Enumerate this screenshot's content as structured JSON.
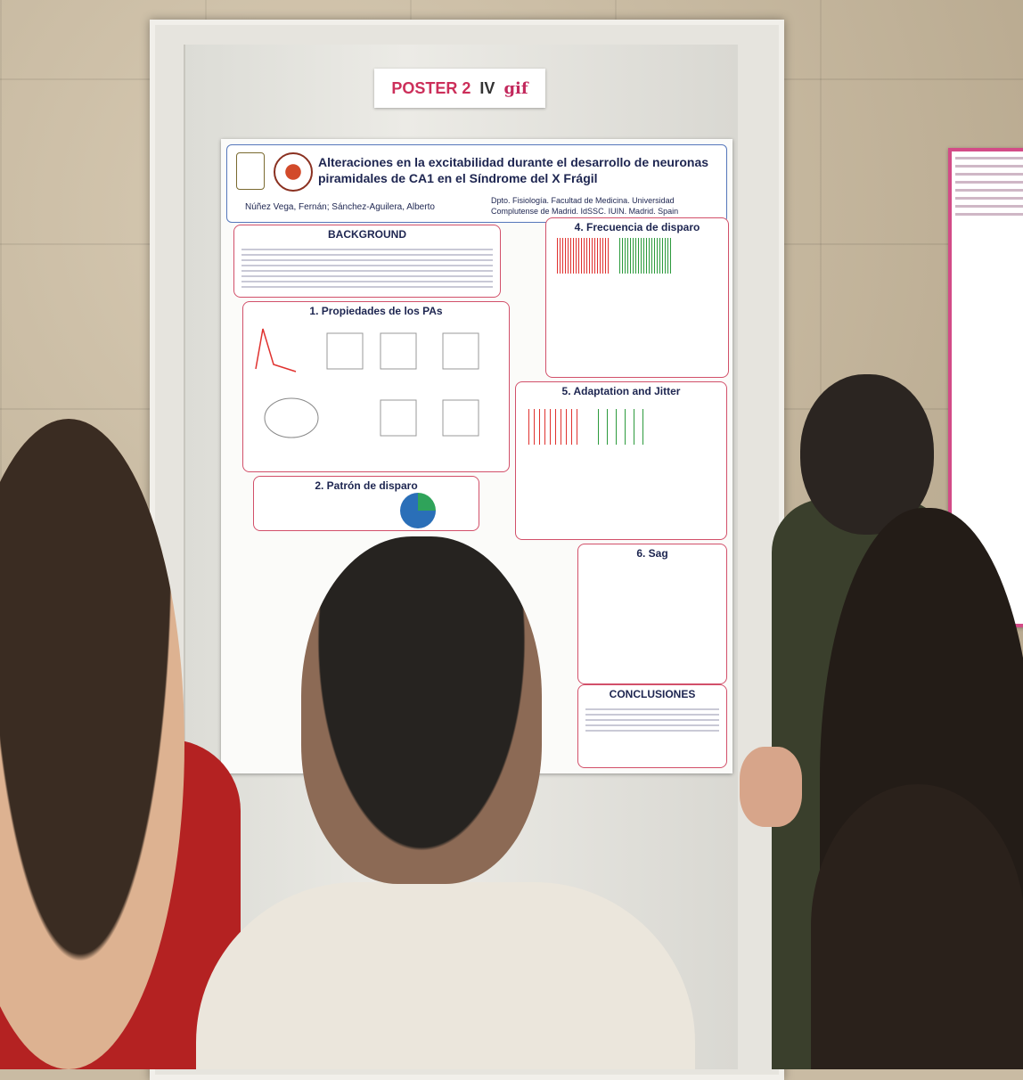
{
  "label": {
    "poster_number": "POSTER 2",
    "conference": "IV",
    "logo_text": "gif"
  },
  "poster": {
    "title": "Alteraciones en la excitabilidad durante el desarrollo de neuronas piramidales de CA1 en el Síndrome del X Frágil",
    "authors": "Núñez Vega, Fernán; Sánchez-Aguilera, Alberto",
    "affiliation": "Dpto. Fisiología. Facultad de Medicina. Universidad Complutense de Madrid. IdSSC. IUIN. Madrid. Spain",
    "sections": {
      "background": "BACKGROUND",
      "s1": "1. Propiedades de los PAs",
      "s2": "2. Patrón de disparo",
      "s4": "4. Frecuencia de disparo",
      "s5": "5. Adaptation and Jitter",
      "s6": "6. Sag",
      "conclusions": "CONCLUSIONES"
    }
  },
  "colors": {
    "wt_trace": "#e0322f",
    "ko_trace": "#2c9a3c",
    "accent": "#d2506a"
  }
}
